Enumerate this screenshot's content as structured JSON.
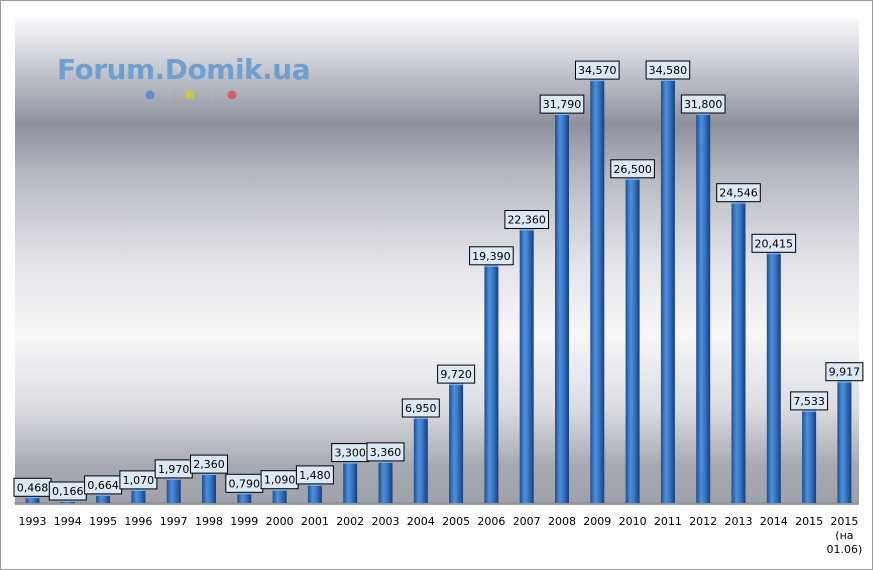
{
  "watermark": {
    "text": "Forum.Domik.ua",
    "dot_colors": [
      "#5b8fd0",
      "#c8c83a",
      "#d06070"
    ]
  },
  "colors": {
    "bar": "#2f6fbf",
    "label_bg": "#dde8f5",
    "label_border": "#000000"
  },
  "chart_data": {
    "type": "bar",
    "title": "",
    "xlabel": "",
    "ylabel": "",
    "ylim": [
      0,
      36
    ],
    "grid": false,
    "legend": "none",
    "categories": [
      [
        "1993"
      ],
      [
        "1994"
      ],
      [
        "1995"
      ],
      [
        "1996"
      ],
      [
        "1997"
      ],
      [
        "1998"
      ],
      [
        "1999"
      ],
      [
        "2000"
      ],
      [
        "2001"
      ],
      [
        "2002"
      ],
      [
        "2003"
      ],
      [
        "2004"
      ],
      [
        "2005"
      ],
      [
        "2006"
      ],
      [
        "2007"
      ],
      [
        "2008"
      ],
      [
        "2009"
      ],
      [
        "2010"
      ],
      [
        "2011"
      ],
      [
        "2012"
      ],
      [
        "2013"
      ],
      [
        "2014"
      ],
      [
        "2015"
      ],
      [
        "2015",
        "(на",
        "01.06)"
      ]
    ],
    "values": [
      0.468,
      0.166,
      0.664,
      1.07,
      1.97,
      2.36,
      0.79,
      1.09,
      1.48,
      3.3,
      3.36,
      6.95,
      9.72,
      19.39,
      22.36,
      31.79,
      34.57,
      26.5,
      34.58,
      31.8,
      24.546,
      20.415,
      7.533,
      9.917
    ],
    "data_labels": [
      "0,468",
      "0,166",
      "0,664",
      "1,070",
      "1,970",
      "2,360",
      "0,790",
      "1,090",
      "1,480",
      "3,300",
      "3,360",
      "6,950",
      "9,720",
      "19,390",
      "22,360",
      "31,790",
      "34,570",
      "26,500",
      "34,580",
      "31,800",
      "24,546",
      "20,415",
      "7,533",
      "9,917"
    ]
  }
}
